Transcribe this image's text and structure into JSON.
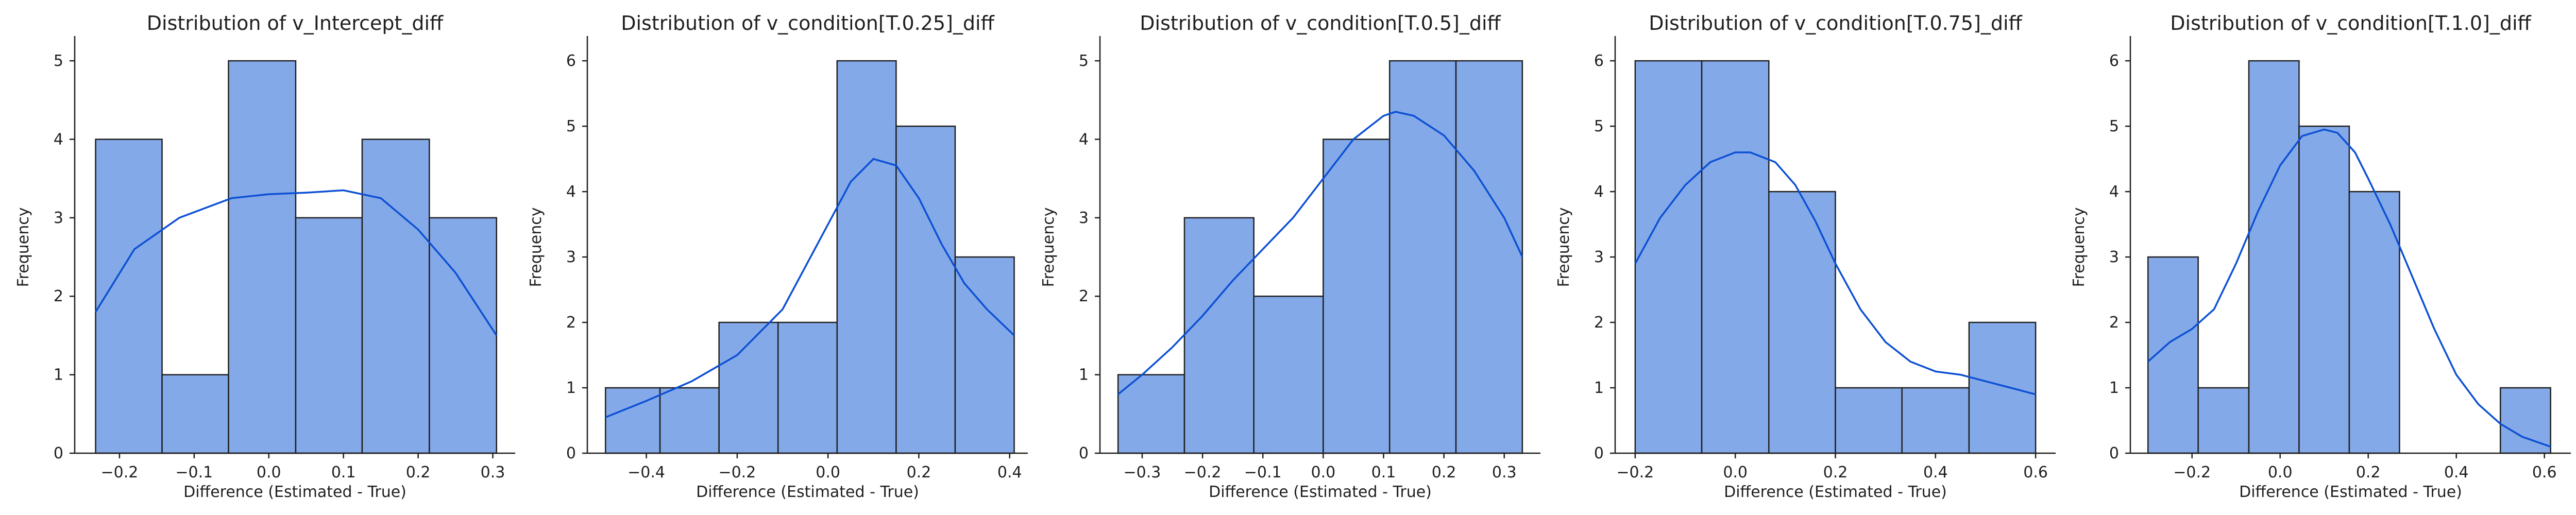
{
  "chart_data": [
    {
      "type": "bar",
      "title": "Distribution of v_Intercept_diff",
      "xlabel": "Difference (Estimated - True)",
      "ylabel": "Frequency",
      "bin_edges": [
        -0.232,
        -0.143,
        -0.054,
        0.036,
        0.125,
        0.215,
        0.305
      ],
      "values": [
        4,
        1,
        5,
        3,
        4,
        3
      ],
      "kde": {
        "x": [
          -0.232,
          -0.18,
          -0.12,
          -0.05,
          0.0,
          0.05,
          0.1,
          0.15,
          0.2,
          0.25,
          0.305
        ],
        "y": [
          1.8,
          2.6,
          3.0,
          3.25,
          3.3,
          3.32,
          3.35,
          3.25,
          2.85,
          2.3,
          1.5
        ]
      },
      "xticks": [
        -0.2,
        -0.1,
        0.0,
        0.1,
        0.2,
        0.3
      ],
      "xtick_labels": [
        "−0.2",
        "−0.1",
        "0.0",
        "0.1",
        "0.2",
        "0.3"
      ],
      "xlim": [
        -0.26,
        0.33
      ],
      "yticks": [
        0,
        1,
        2,
        3,
        4,
        5
      ],
      "ylim": [
        0,
        5.25
      ]
    },
    {
      "type": "bar",
      "title": "Distribution of v_condition[T.0.25]_diff",
      "xlabel": "Difference (Estimated - True)",
      "ylabel": "Frequency",
      "bin_edges": [
        -0.49,
        -0.37,
        -0.24,
        -0.11,
        0.02,
        0.15,
        0.28,
        0.41
      ],
      "values": [
        1,
        1,
        2,
        2,
        6,
        5,
        3
      ],
      "kde": {
        "x": [
          -0.49,
          -0.4,
          -0.3,
          -0.2,
          -0.1,
          0.0,
          0.05,
          0.1,
          0.15,
          0.2,
          0.25,
          0.3,
          0.35,
          0.41
        ],
        "y": [
          0.55,
          0.8,
          1.1,
          1.5,
          2.2,
          3.5,
          4.15,
          4.5,
          4.4,
          3.9,
          3.2,
          2.6,
          2.2,
          1.8
        ]
      },
      "xticks": [
        -0.4,
        -0.2,
        0.0,
        0.2,
        0.4
      ],
      "xtick_labels": [
        "−0.4",
        "−0.2",
        "0.0",
        "0.2",
        "0.4"
      ],
      "xlim": [
        -0.53,
        0.44
      ],
      "yticks": [
        0,
        1,
        2,
        3,
        4,
        5,
        6
      ],
      "ylim": [
        0,
        6.3
      ]
    },
    {
      "type": "bar",
      "title": "Distribution of v_condition[T.0.5]_diff",
      "xlabel": "Difference (Estimated - True)",
      "ylabel": "Frequency",
      "bin_edges": [
        -0.34,
        -0.23,
        -0.115,
        0.0,
        0.11,
        0.22,
        0.33
      ],
      "values": [
        1,
        3,
        2,
        4,
        5,
        5
      ],
      "kde": {
        "x": [
          -0.34,
          -0.3,
          -0.25,
          -0.2,
          -0.15,
          -0.1,
          -0.05,
          0.0,
          0.05,
          0.1,
          0.12,
          0.15,
          0.2,
          0.25,
          0.3,
          0.33
        ],
        "y": [
          0.75,
          1.0,
          1.35,
          1.75,
          2.2,
          2.6,
          3.0,
          3.5,
          4.0,
          4.3,
          4.35,
          4.3,
          4.05,
          3.6,
          3.0,
          2.5
        ]
      },
      "xticks": [
        -0.3,
        -0.2,
        -0.1,
        0.0,
        0.1,
        0.2,
        0.3
      ],
      "xtick_labels": [
        "−0.3",
        "−0.2",
        "−0.1",
        "0.0",
        "0.1",
        "0.2",
        "0.3"
      ],
      "xlim": [
        -0.37,
        0.36
      ],
      "yticks": [
        0,
        1,
        2,
        3,
        4,
        5
      ],
      "ylim": [
        0,
        5.25
      ]
    },
    {
      "type": "bar",
      "title": "Distribution of v_condition[T.0.75]_diff",
      "xlabel": "Difference (Estimated - True)",
      "ylabel": "Frequency",
      "bin_edges": [
        -0.2,
        -0.067,
        0.067,
        0.2,
        0.333,
        0.467,
        0.6
      ],
      "values": [
        6,
        6,
        4,
        1,
        1,
        2
      ],
      "kde": {
        "x": [
          -0.2,
          -0.15,
          -0.1,
          -0.05,
          0.0,
          0.03,
          0.08,
          0.12,
          0.16,
          0.2,
          0.25,
          0.3,
          0.35,
          0.4,
          0.45,
          0.5,
          0.55,
          0.6
        ],
        "y": [
          2.9,
          3.6,
          4.1,
          4.45,
          4.6,
          4.6,
          4.45,
          4.1,
          3.55,
          2.9,
          2.2,
          1.7,
          1.4,
          1.25,
          1.2,
          1.1,
          1.0,
          0.9
        ]
      },
      "xticks": [
        -0.2,
        0.0,
        0.2,
        0.4,
        0.6
      ],
      "xtick_labels": [
        "−0.2",
        "0.0",
        "0.2",
        "0.4",
        "0.6"
      ],
      "xlim": [
        -0.24,
        0.64
      ],
      "yticks": [
        0,
        1,
        2,
        3,
        4,
        5,
        6
      ],
      "ylim": [
        0,
        6.3
      ]
    },
    {
      "type": "bar",
      "title": "Distribution of v_condition[T.1.0]_diff",
      "xlabel": "Difference (Estimated - True)",
      "ylabel": "Frequency",
      "bin_edges": [
        -0.3,
        -0.186,
        -0.071,
        0.043,
        0.157,
        0.271,
        0.386,
        0.5,
        0.614
      ],
      "values": [
        3,
        1,
        6,
        5,
        4,
        0,
        0,
        1
      ],
      "kde": {
        "x": [
          -0.3,
          -0.25,
          -0.2,
          -0.15,
          -0.1,
          -0.05,
          0.0,
          0.05,
          0.1,
          0.13,
          0.17,
          0.2,
          0.25,
          0.3,
          0.35,
          0.4,
          0.45,
          0.5,
          0.55,
          0.614
        ],
        "y": [
          1.4,
          1.7,
          1.9,
          2.2,
          2.9,
          3.7,
          4.4,
          4.85,
          4.95,
          4.9,
          4.6,
          4.2,
          3.5,
          2.7,
          1.9,
          1.2,
          0.75,
          0.45,
          0.25,
          0.1
        ]
      },
      "xticks": [
        -0.2,
        0.0,
        0.2,
        0.4,
        0.6
      ],
      "xtick_labels": [
        "−0.2",
        "0.0",
        "0.2",
        "0.4",
        "0.6"
      ],
      "xlim": [
        -0.34,
        0.66
      ],
      "yticks": [
        0,
        1,
        2,
        3,
        4,
        5,
        6
      ],
      "ylim": [
        0,
        6.3
      ]
    }
  ],
  "colors": {
    "bar_fill": "#84a9e8",
    "bar_edge": "#1f1f1f",
    "kde_line": "#0b4fd4",
    "axis": "#1f1f1f"
  }
}
